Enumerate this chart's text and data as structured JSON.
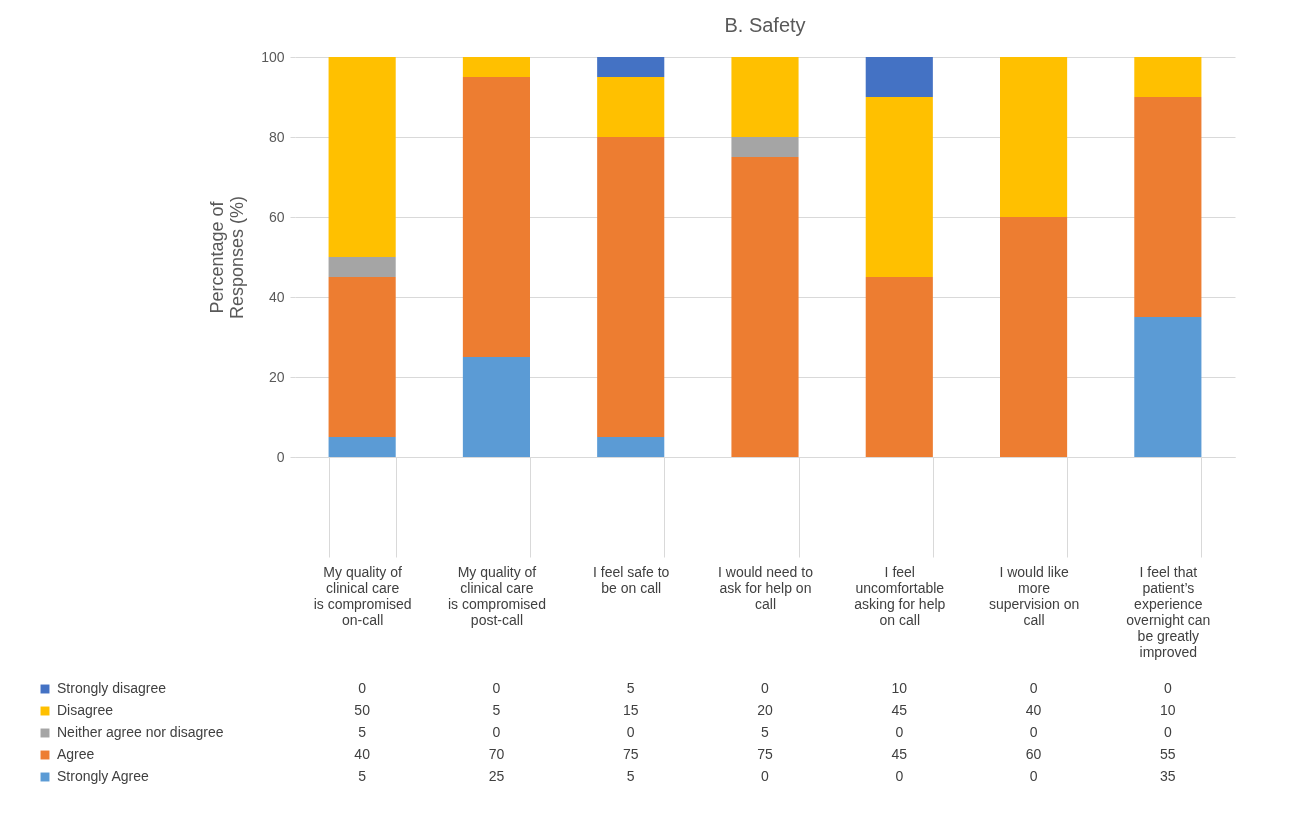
{
  "chart_data": {
    "type": "bar",
    "title": "B. Safety",
    "ylabel": "Percentage of Responses (%)",
    "stacked": true,
    "data_labels": true,
    "legend": "bottom",
    "grid": "y",
    "ylim": [
      0,
      100
    ],
    "yticks": [
      0,
      20,
      40,
      60,
      80,
      100
    ],
    "categories": [
      "My quality of clinical care is compromised on-call",
      "My quality of clinical care is compromised post-call",
      "I feel safe to be on call",
      "I would need to ask for help on call",
      "I feel uncomfortable asking for help on call",
      "I would like more supervision on call",
      "I feel that patient’s experience overnight can be greatly improved"
    ],
    "series": [
      {
        "name": "Strongly Agree",
        "color": "#5b9bd5",
        "values": [
          5,
          25,
          5,
          0,
          0,
          0,
          35
        ]
      },
      {
        "name": "Agree",
        "color": "#ed7d31",
        "values": [
          40,
          70,
          75,
          75,
          45,
          60,
          55
        ]
      },
      {
        "name": "Neither agree nor disagree",
        "color": "#a5a5a5",
        "values": [
          5,
          0,
          0,
          5,
          0,
          0,
          0
        ]
      },
      {
        "name": "Disagree",
        "color": "#ffc000",
        "values": [
          50,
          5,
          15,
          20,
          45,
          40,
          10
        ]
      },
      {
        "name": "Strongly disagree",
        "color": "#4472c4",
        "values": [
          0,
          0,
          5,
          0,
          10,
          0,
          0
        ]
      }
    ]
  }
}
